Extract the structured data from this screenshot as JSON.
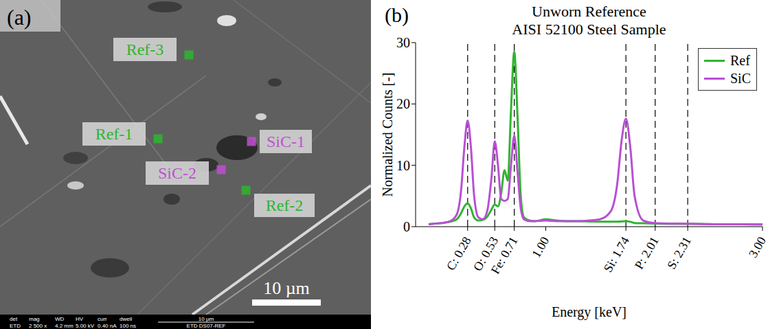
{
  "panels": [
    "(a)",
    "(b)"
  ],
  "image_panel": {
    "markers": [
      {
        "label": "Ref-3",
        "color": "#2fb52f"
      },
      {
        "label": "Ref-1",
        "color": "#2fb52f"
      },
      {
        "label": "SiC-1",
        "color": "#c04fd2"
      },
      {
        "label": "SiC-2",
        "color": "#c04fd2"
      },
      {
        "label": "Ref-2",
        "color": "#2fb52f"
      }
    ],
    "scale_bar": "10 µm",
    "info_bar": {
      "headers": [
        "det",
        "mag",
        "WD",
        "HV",
        "curr",
        "dwell"
      ],
      "values": [
        "ETD",
        "2 500 x",
        "4.2 mm",
        "5.00 kV",
        "0.40 nA",
        "100 ns"
      ],
      "scale": "10 µm",
      "name": "ETD DS07-REF"
    }
  },
  "chart_data": {
    "type": "line",
    "title": "Unworn Reference",
    "subtitle": "AISI 52100 Steel Sample",
    "x_label": "Energy [keV]",
    "y_label": "Normalized Counts [-]",
    "x": [
      -0.08,
      -0.02,
      0.05,
      0.12,
      0.18,
      0.22,
      0.25,
      0.28,
      0.31,
      0.34,
      0.38,
      0.42,
      0.46,
      0.5,
      0.53,
      0.56,
      0.59,
      0.62,
      0.65,
      0.68,
      0.71,
      0.74,
      0.77,
      0.8,
      0.85,
      0.9,
      1.0,
      1.1,
      1.2,
      1.3,
      1.4,
      1.5,
      1.6,
      1.66,
      1.7,
      1.74,
      1.78,
      1.82,
      1.9,
      2.0,
      2.2,
      2.4,
      2.6,
      2.8,
      3.0
    ],
    "series": [
      {
        "name": "Ref",
        "color": "#2fb52f",
        "marker": "none",
        "line_style": "solid",
        "values": [
          0.4,
          0.5,
          0.6,
          0.8,
          1.2,
          2.2,
          3.3,
          3.8,
          3.0,
          1.5,
          1.0,
          1.1,
          1.6,
          2.8,
          3.6,
          3.3,
          5.5,
          9.2,
          7.5,
          19,
          28.5,
          18,
          5,
          1.5,
          1.0,
          0.9,
          1.2,
          1.0,
          0.9,
          0.9,
          0.85,
          0.8,
          0.8,
          0.8,
          0.85,
          0.9,
          0.8,
          0.6,
          0.55,
          0.5,
          0.45,
          0.45,
          0.4,
          0.4,
          0.35
        ]
      },
      {
        "name": "SiC",
        "color": "#b94fd4",
        "marker": "none",
        "line_style": "solid",
        "values": [
          0.4,
          0.5,
          0.6,
          0.9,
          2,
          6,
          13,
          17.3,
          13,
          5,
          1.5,
          1.2,
          2.5,
          8,
          13.9,
          10,
          4.5,
          4.2,
          4.5,
          10,
          14.8,
          9,
          3,
          1.2,
          0.9,
          0.9,
          1.0,
          0.9,
          0.9,
          0.9,
          1.0,
          1.2,
          2.5,
          7,
          14,
          17.6,
          13,
          5,
          1.0,
          0.6,
          0.5,
          0.45,
          0.4,
          0.4,
          0.35
        ]
      }
    ],
    "xlim": [
      -0.2,
      3.0
    ],
    "xticks": [
      {
        "value": 0.28,
        "label": "C: 0.28"
      },
      {
        "value": 0.53,
        "label": "O: 0.53"
      },
      {
        "value": 0.71,
        "label": "Fe: 0.71"
      },
      {
        "value": 1.0,
        "label": "1.00"
      },
      {
        "value": 1.74,
        "label": "Si: 1.74"
      },
      {
        "value": 2.01,
        "label": "P: 2.01"
      },
      {
        "value": 2.31,
        "label": "S: 2.31"
      },
      {
        "value": 3.0,
        "label": "3.00"
      }
    ],
    "element_lines": [
      0.28,
      0.53,
      0.71,
      1.74,
      2.01,
      2.31
    ],
    "ylim": [
      0,
      30
    ],
    "yticks": [
      0,
      10,
      20,
      30
    ],
    "grid": false,
    "legend": "upper right"
  }
}
